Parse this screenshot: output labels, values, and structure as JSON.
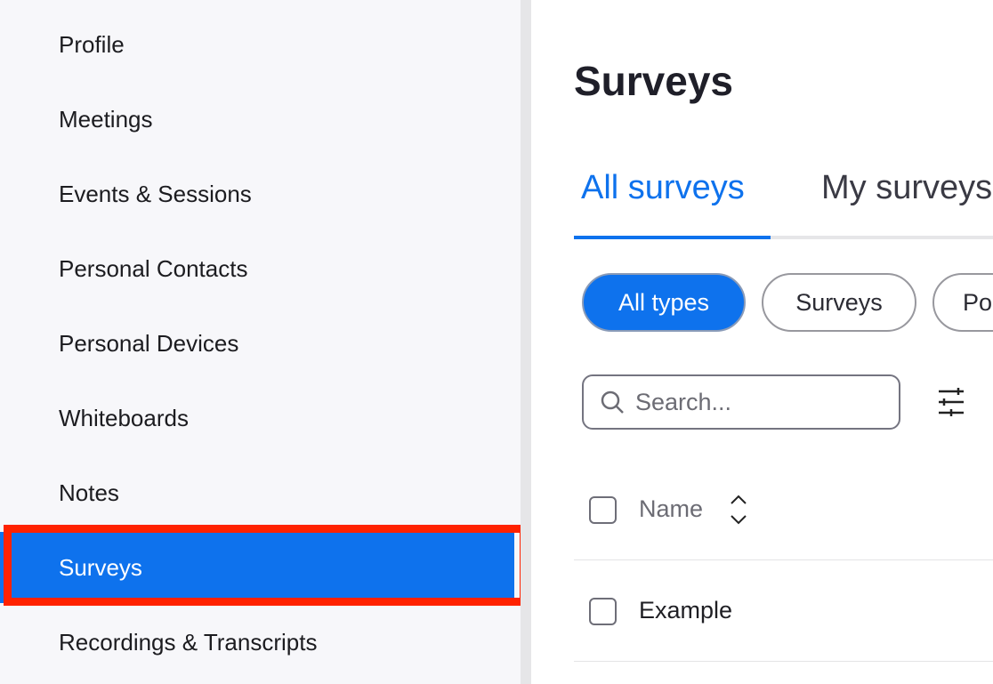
{
  "sidebar": {
    "items": [
      {
        "label": "Profile"
      },
      {
        "label": "Meetings"
      },
      {
        "label": "Events & Sessions"
      },
      {
        "label": "Personal Contacts"
      },
      {
        "label": "Personal Devices"
      },
      {
        "label": "Whiteboards"
      },
      {
        "label": "Notes"
      },
      {
        "label": "Surveys",
        "active": true
      },
      {
        "label": "Recordings & Transcripts"
      }
    ]
  },
  "main": {
    "title": "Surveys",
    "tabs": [
      {
        "label": "All surveys",
        "active": true
      },
      {
        "label": "My surveys"
      }
    ],
    "filters": [
      {
        "label": "All types",
        "active": true
      },
      {
        "label": "Surveys"
      },
      {
        "label": "Polls"
      }
    ],
    "search": {
      "placeholder": "Search..."
    },
    "table": {
      "header": "Name",
      "rows": [
        {
          "name": "Example"
        }
      ]
    }
  },
  "colors": {
    "accent": "#0e72ed",
    "highlight": "#ff2200"
  },
  "icons": [
    "search-icon",
    "filter-sliders-icon",
    "sort-icon"
  ]
}
